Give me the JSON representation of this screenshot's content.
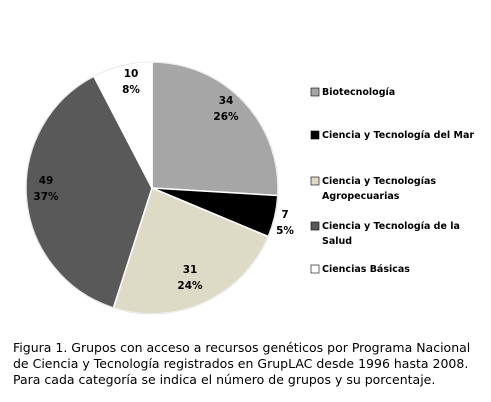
{
  "chart_data": {
    "type": "pie",
    "categories": [
      "Biotecnología",
      "Ciencia y Tecnología del Mar",
      "Ciencia y Tecnologías Agropecuarias",
      "Ciencia y Tecnología de la Salud",
      "Ciencias Básicas"
    ],
    "values": [
      34,
      7,
      31,
      49,
      10
    ],
    "percent_labels": [
      "26%",
      "5%",
      "24%",
      "37%",
      "8%"
    ],
    "colors": [
      "#a6a6a6",
      "#000000",
      "#dddac6",
      "#595959",
      "#ffffff"
    ],
    "legend_lines": [
      [
        "Biotecnología"
      ],
      [
        "Ciencia y Tecnología del Mar"
      ],
      [
        "Ciencia y Tecnologías",
        "Agropecuarias"
      ],
      [
        "Ciencia y Tecnología de la",
        "Salud"
      ],
      [
        "Ciencias Básicas"
      ]
    ],
    "start": "12 o'clock",
    "direction": "clockwise",
    "legend_position": "right"
  },
  "caption": "Figura 1.  Grupos con acceso a recursos genéticos por Programa Nacional de Ciencia y Tecnología registrados en GrupLAC desde 1996 hasta 2008. Para cada categoría se indica el número de grupos y su porcentaje."
}
